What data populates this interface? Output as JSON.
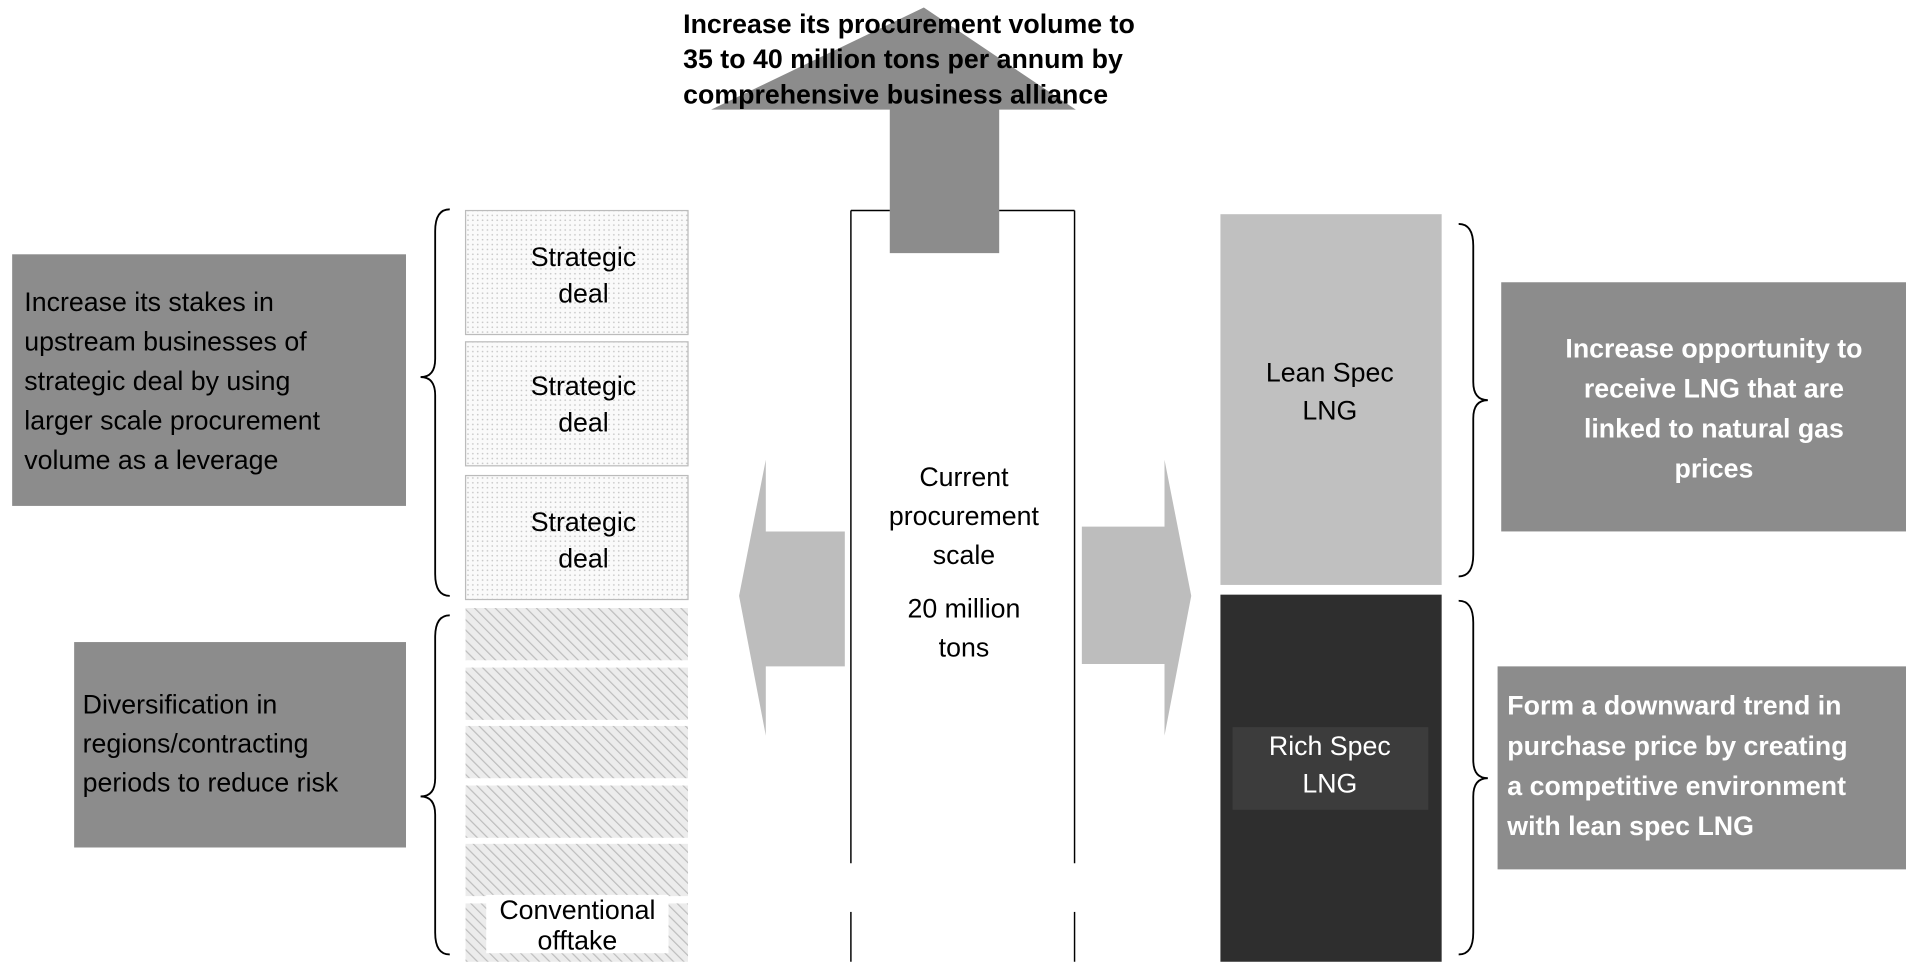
{
  "top_arrow": {
    "lines": [
      "Increase its procurement volume to",
      "35 to 40 million tons per annum by",
      "comprehensive business alliance"
    ]
  },
  "center": {
    "label": [
      "Current",
      "procurement",
      "scale"
    ],
    "amount": [
      "20 million",
      "tons"
    ]
  },
  "strategic_deals": [
    [
      "Strategic",
      "deal"
    ],
    [
      "Strategic",
      "deal"
    ],
    [
      "Strategic",
      "deal"
    ]
  ],
  "conventional": [
    "Conventional",
    "offtake"
  ],
  "left_boxes": [
    [
      "Increase its stakes in",
      "upstream businesses of",
      "strategic deal by using",
      "larger scale procurement",
      "volume as a leverage"
    ],
    [
      "Diversification in",
      "regions/contracting",
      "periods to reduce risk"
    ]
  ],
  "lean_spec": [
    "Lean Spec",
    "LNG"
  ],
  "rich_spec": [
    "Rich Spec",
    "LNG"
  ],
  "right_boxes": [
    [
      "Increase opportunity to",
      "receive LNG that are",
      "linked to natural gas",
      "prices"
    ],
    [
      "Form a downward trend in",
      "purchase price by creating",
      "a competitive environment",
      "with lean spec LNG"
    ]
  ]
}
